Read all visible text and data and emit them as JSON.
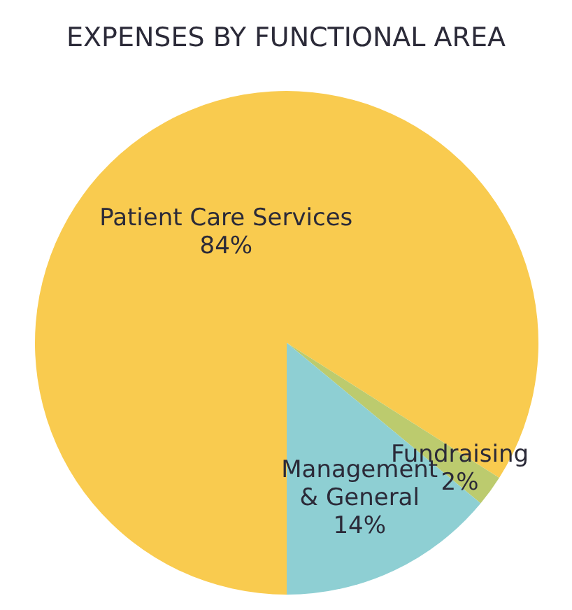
{
  "chart_data": {
    "type": "pie",
    "title": "EXPENSES BY FUNCTIONAL AREA",
    "categories": [
      "Patient Care Services",
      "Fundraising",
      "Management & General"
    ],
    "values": [
      84,
      2,
      14
    ],
    "value_labels": [
      "84%",
      "2%",
      "14%"
    ],
    "colors": [
      "#f9cb4f",
      "#bccb6e",
      "#8ecfd3"
    ]
  }
}
